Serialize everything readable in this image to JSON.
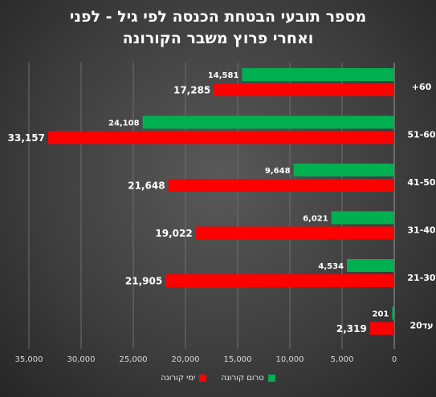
{
  "chart_data": {
    "type": "bar",
    "orientation": "horizontal",
    "title_lines": [
      "מספר תובעי הבטחת הכנסה לפי גיל - לפני",
      "ואחרי פרוץ משבר הקורונה"
    ],
    "categories": [
      "+60",
      "51-60",
      "41-50",
      "31-40",
      "21-30",
      "עד20"
    ],
    "series": [
      {
        "name": "טרום קורונה",
        "color": "#00b050",
        "values": [
          14581,
          24108,
          9648,
          6021,
          4534,
          201
        ]
      },
      {
        "name": "ימי קורונה",
        "color": "#ff0000",
        "values": [
          17285,
          33157,
          21648,
          19022,
          21905,
          2319
        ]
      }
    ],
    "xlim": [
      0,
      35000
    ],
    "x_ticks": [
      0,
      5000,
      10000,
      15000,
      20000,
      25000,
      30000,
      35000
    ],
    "x_tick_labels": [
      "0",
      "5,000",
      "10,000",
      "15,000",
      "20,000",
      "25,000",
      "30,000",
      "35,000"
    ],
    "reversed_axis": true,
    "grid": true,
    "legend_position": "bottom",
    "data_labels": true
  }
}
